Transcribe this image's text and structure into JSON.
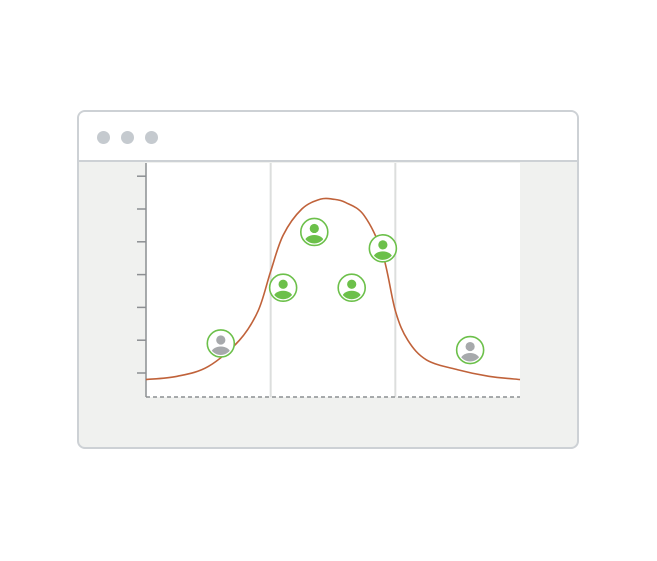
{
  "window": {
    "control_dots": [
      "window-dot",
      "window-dot",
      "window-dot"
    ],
    "dot_color": "#c5cacf",
    "border_color": "#cdd1d5",
    "content_background": "#f0f1ef"
  },
  "chart_data": {
    "type": "scatter",
    "title": "",
    "xlabel": "",
    "ylabel": "",
    "xlim": [
      0,
      3
    ],
    "ylim": [
      0,
      7
    ],
    "y_ticks": [
      1,
      2,
      3,
      4,
      5,
      6,
      7
    ],
    "vertical_grid_x": [
      1,
      2
    ],
    "curve": {
      "shape": "bell",
      "color": "#c0623a",
      "x": [
        0.0,
        0.25,
        0.5,
        0.75,
        0.9,
        1.0,
        1.1,
        1.25,
        1.4,
        1.5,
        1.6,
        1.75,
        1.9,
        2.0,
        2.1,
        2.25,
        2.5,
        2.75,
        3.0
      ],
      "y": [
        0.8,
        0.9,
        1.2,
        2.0,
        2.9,
        4.1,
        5.2,
        6.0,
        6.3,
        6.3,
        6.2,
        5.8,
        4.6,
        2.9,
        2.0,
        1.4,
        1.1,
        0.9,
        0.8
      ]
    },
    "points": [
      {
        "icon": "person-icon",
        "x": 0.6,
        "y": 1.9,
        "highlighted": false
      },
      {
        "icon": "person-icon",
        "x": 1.1,
        "y": 3.6,
        "highlighted": true
      },
      {
        "icon": "person-icon",
        "x": 1.35,
        "y": 5.3,
        "highlighted": true
      },
      {
        "icon": "person-icon",
        "x": 1.65,
        "y": 3.6,
        "highlighted": true
      },
      {
        "icon": "person-icon",
        "x": 1.9,
        "y": 4.8,
        "highlighted": true
      },
      {
        "icon": "person-icon",
        "x": 2.6,
        "y": 1.7,
        "highlighted": false
      }
    ],
    "colors": {
      "highlight": "#6cc04a",
      "neutral": "#a7a9ac",
      "axis": "#8c8f92",
      "grid": "#dcdedd",
      "plot_background": "#ffffff"
    }
  }
}
